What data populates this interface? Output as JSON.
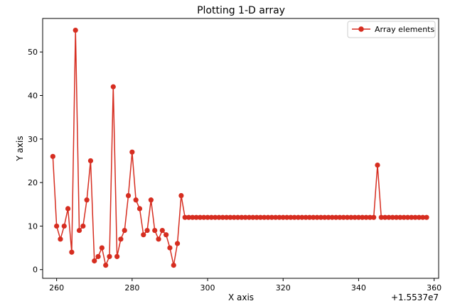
{
  "chart_data": {
    "type": "line",
    "title": "Plotting 1-D array",
    "xlabel": "X axis",
    "ylabel": "Y axis",
    "x_offset_label": "+1.5537e7",
    "xlim": [
      256.3,
      361.2
    ],
    "ylim": [
      -2,
      57.7
    ],
    "x_ticks": [
      260,
      280,
      300,
      320,
      340,
      360
    ],
    "y_ticks": [
      0,
      10,
      20,
      30,
      40,
      50
    ],
    "grid": false,
    "legend": "top-right",
    "line_color": "#d62d20",
    "series": [
      {
        "name": "Array elements",
        "x": [
          259,
          260,
          261,
          262,
          263,
          264,
          265,
          266,
          267,
          268,
          269,
          270,
          271,
          272,
          273,
          274,
          275,
          276,
          277,
          278,
          279,
          280,
          281,
          282,
          283,
          284,
          285,
          286,
          287,
          288,
          289,
          290,
          291,
          292,
          293,
          294,
          295,
          296,
          297,
          298,
          299,
          300,
          301,
          302,
          303,
          304,
          305,
          306,
          307,
          308,
          309,
          310,
          311,
          312,
          313,
          314,
          315,
          316,
          317,
          318,
          319,
          320,
          321,
          322,
          323,
          324,
          325,
          326,
          327,
          328,
          329,
          330,
          331,
          332,
          333,
          334,
          335,
          336,
          337,
          338,
          339,
          340,
          341,
          342,
          343,
          344,
          345,
          346,
          347,
          348,
          349,
          350,
          351,
          352,
          353,
          354,
          355,
          356,
          357,
          358
        ],
        "y": [
          26,
          10,
          7,
          10,
          14,
          4,
          55,
          9,
          10,
          16,
          25,
          2,
          3,
          5,
          1,
          3,
          42,
          3,
          7,
          9,
          17,
          27,
          16,
          14,
          8,
          9,
          16,
          9,
          7,
          9,
          8,
          5,
          1,
          6,
          17,
          12,
          12,
          12,
          12,
          12,
          12,
          12,
          12,
          12,
          12,
          12,
          12,
          12,
          12,
          12,
          12,
          12,
          12,
          12,
          12,
          12,
          12,
          12,
          12,
          12,
          12,
          12,
          12,
          12,
          12,
          12,
          12,
          12,
          12,
          12,
          12,
          12,
          12,
          12,
          12,
          12,
          12,
          12,
          12,
          12,
          12,
          12,
          12,
          12,
          12,
          12,
          24,
          12,
          12,
          12,
          12,
          12,
          12,
          12,
          12,
          12,
          12,
          12,
          12,
          12
        ]
      }
    ]
  }
}
